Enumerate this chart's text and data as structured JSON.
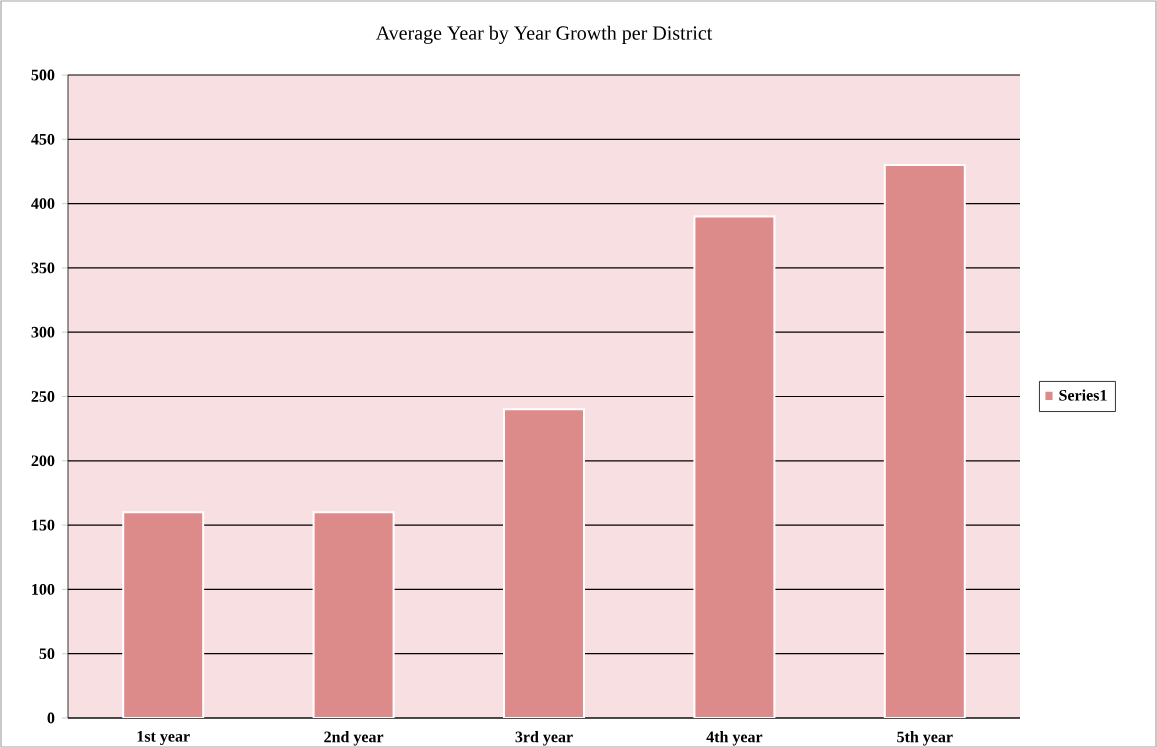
{
  "chart_data": {
    "type": "bar",
    "title": "Average Year by Year Growth per District",
    "categories": [
      "1st year",
      "2nd year",
      "3rd year",
      "4th year",
      "5th year"
    ],
    "series": [
      {
        "name": "Series1",
        "color": "#dc8a8a",
        "values": [
          160,
          160,
          240,
          390,
          430
        ]
      }
    ],
    "ylim": [
      0,
      500
    ],
    "yticks": [
      0,
      50,
      100,
      150,
      200,
      250,
      300,
      350,
      400,
      450,
      500
    ],
    "grid": "y",
    "legend": "right"
  }
}
